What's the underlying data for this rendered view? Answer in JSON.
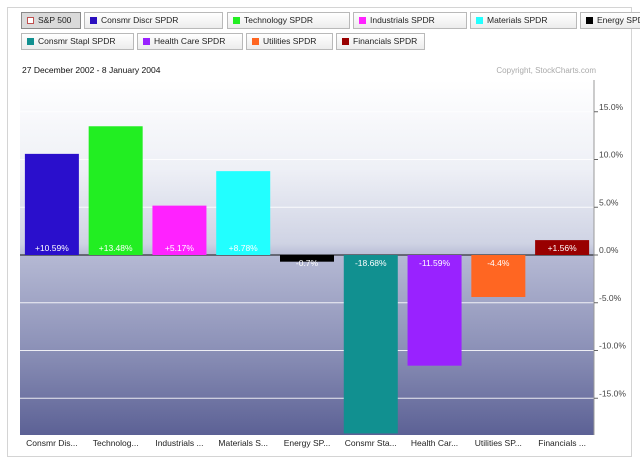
{
  "header": {
    "date_range": "27 December 2002 - 8 January 2004",
    "copyright": "Copyright, StockCharts.com"
  },
  "legend": [
    {
      "label": "S&P 500",
      "color": "#ffffff",
      "active": true
    },
    {
      "label": "Consmr Discr SPDR",
      "color": "#2a0fbf"
    },
    {
      "label": "Technology SPDR",
      "color": "#22ee22"
    },
    {
      "label": "Industrials SPDR",
      "color": "#ff22ff"
    },
    {
      "label": "Materials SPDR",
      "color": "#22ffff"
    },
    {
      "label": "Energy SPDR",
      "color": "#000000"
    },
    {
      "label": "Consmr Stapl SPDR",
      "color": "#119090"
    },
    {
      "label": "Health Care SPDR",
      "color": "#9922ff"
    },
    {
      "label": "Utilities SPDR",
      "color": "#ff6622"
    },
    {
      "label": "Financials SPDR",
      "color": "#990000"
    }
  ],
  "chart_data": {
    "type": "bar",
    "categories": [
      "Consmr Dis...",
      "Technolog...",
      "Industrials ...",
      "Materials S...",
      "Energy SP...",
      "Consmr Sta...",
      "Health Car...",
      "Utilities SP...",
      "Financials ..."
    ],
    "values": [
      10.59,
      13.48,
      5.17,
      8.78,
      -0.7,
      -18.68,
      -11.59,
      -4.4,
      1.56
    ],
    "value_labels": [
      "+10.59%",
      "+13.48%",
      "+5.17%",
      "+8.78%",
      "-0.7%",
      "-18.68%",
      "-11.59%",
      "-4.4%",
      "+1.56%"
    ],
    "colors": [
      "#2a0fcc",
      "#22ee22",
      "#ff22ff",
      "#22ffff",
      "#000000",
      "#119090",
      "#9922ff",
      "#ff6622",
      "#990000"
    ],
    "yticks": [
      15,
      10,
      5,
      0,
      -5,
      -10,
      -15
    ],
    "ytick_labels": [
      "15.0%",
      "10.0%",
      "5.0%",
      "0.0%",
      "-5.0%",
      "-10.0%",
      "-15.0%"
    ],
    "ylim": [
      -18.68,
      18.5
    ],
    "y_axis_side": "right",
    "grid": true
  }
}
